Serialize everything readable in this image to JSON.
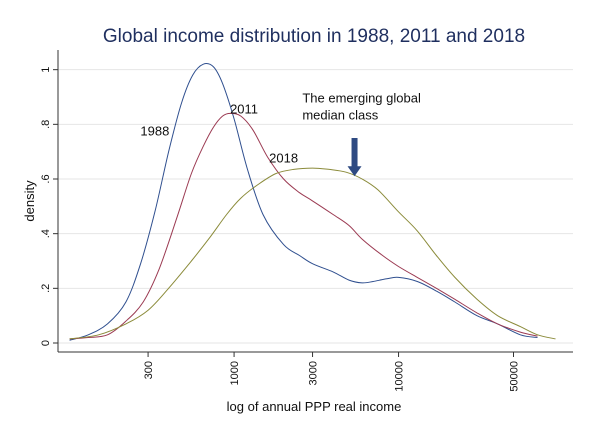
{
  "chart_data": {
    "type": "line",
    "title": "Global income distribution in 1988, 2011 and 2018",
    "xlabel": "log of annual PPP real income",
    "ylabel": "density",
    "x_scale": "log",
    "xlim": [
      85,
      115000
    ],
    "ylim": [
      0,
      1.05
    ],
    "x_ticks": [
      300,
      1000,
      3000,
      10000,
      50000
    ],
    "x_tick_labels": [
      "300",
      "1000",
      "3000",
      "10000",
      "50000"
    ],
    "y_ticks": [
      0,
      0.2,
      0.4,
      0.6,
      0.8,
      1
    ],
    "y_tick_labels": [
      "0",
      ".2",
      ".4",
      ".6",
      ".8",
      "1"
    ],
    "grid": "horizontal",
    "legend": "none",
    "series": [
      {
        "name": "1988",
        "color": "#2f4f8f",
        "x": [
          100,
          130,
          170,
          220,
          270,
          330,
          400,
          480,
          560,
          650,
          750,
          850,
          1000,
          1200,
          1500,
          2000,
          2500,
          3000,
          4000,
          5000,
          6000,
          7000,
          8500,
          10000,
          13000,
          17000,
          22000,
          30000,
          40000,
          55000,
          70000
        ],
        "y": [
          0.01,
          0.03,
          0.07,
          0.15,
          0.29,
          0.48,
          0.7,
          0.88,
          0.98,
          1.02,
          1.01,
          0.95,
          0.82,
          0.64,
          0.47,
          0.36,
          0.32,
          0.29,
          0.26,
          0.23,
          0.22,
          0.225,
          0.235,
          0.24,
          0.225,
          0.19,
          0.15,
          0.1,
          0.07,
          0.03,
          0.02
        ]
      },
      {
        "name": "2011",
        "color": "#9b3a52",
        "x": [
          100,
          130,
          170,
          220,
          280,
          350,
          450,
          550,
          650,
          750,
          850,
          950,
          1100,
          1300,
          1600,
          2000,
          2500,
          3000,
          4000,
          5000,
          6000,
          8000,
          10000,
          13000,
          17000,
          22000,
          30000,
          40000,
          55000,
          70000
        ],
        "y": [
          0.015,
          0.02,
          0.03,
          0.08,
          0.15,
          0.27,
          0.46,
          0.62,
          0.72,
          0.79,
          0.83,
          0.84,
          0.83,
          0.78,
          0.68,
          0.6,
          0.55,
          0.52,
          0.47,
          0.43,
          0.38,
          0.32,
          0.28,
          0.24,
          0.2,
          0.16,
          0.11,
          0.07,
          0.04,
          0.025
        ]
      },
      {
        "name": "2018",
        "color": "#8b8b3a",
        "x": [
          100,
          150,
          220,
          300,
          400,
          550,
          700,
          900,
          1100,
          1400,
          1800,
          2300,
          3000,
          3800,
          4800,
          6000,
          7500,
          10000,
          13000,
          17000,
          22000,
          30000,
          40000,
          55000,
          70000,
          90000
        ],
        "y": [
          0.015,
          0.03,
          0.07,
          0.12,
          0.2,
          0.3,
          0.38,
          0.47,
          0.53,
          0.58,
          0.62,
          0.635,
          0.64,
          0.635,
          0.625,
          0.6,
          0.56,
          0.48,
          0.41,
          0.32,
          0.24,
          0.16,
          0.1,
          0.06,
          0.03,
          0.015
        ]
      }
    ],
    "series_labels": [
      {
        "text": "1988",
        "x": 330,
        "y": 0.76
      },
      {
        "text": "2011",
        "x": 1150,
        "y": 0.84
      },
      {
        "text": "2018",
        "x": 2000,
        "y": 0.66
      }
    ],
    "annotation": {
      "lines": [
        "The emerging global",
        "median class"
      ],
      "text_x": 2600,
      "text_y": 0.88,
      "arrow_x": 5400,
      "arrow_y_top": 0.75,
      "arrow_y_bottom": 0.61,
      "arrow_color": "#2e4a82"
    }
  }
}
